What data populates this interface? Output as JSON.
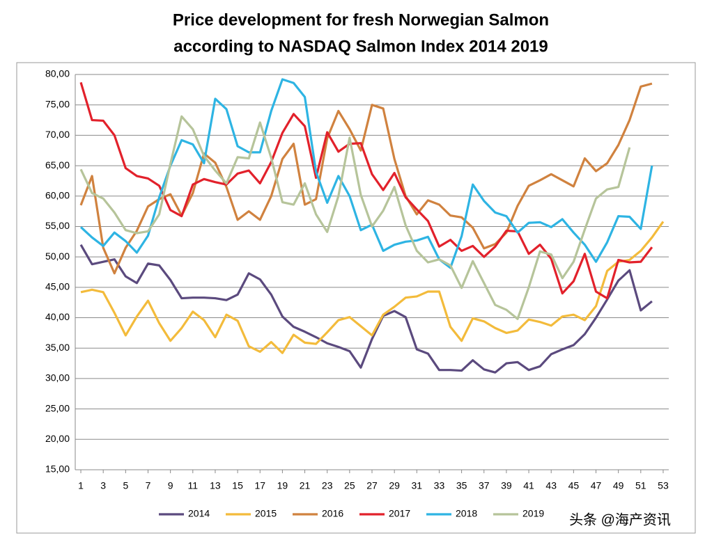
{
  "chart_data": {
    "type": "line",
    "title": [
      "Price development for fresh Norwegian Salmon",
      "according to NASDAQ Salmon Index 2014 2019"
    ],
    "watermark": "头条 @海产资讯",
    "x": [
      1,
      2,
      3,
      4,
      5,
      6,
      7,
      8,
      9,
      10,
      11,
      12,
      13,
      14,
      15,
      16,
      17,
      18,
      19,
      20,
      21,
      22,
      23,
      24,
      25,
      26,
      27,
      28,
      29,
      30,
      31,
      32,
      33,
      34,
      35,
      36,
      37,
      38,
      39,
      40,
      41,
      42,
      43,
      44,
      45,
      46,
      47,
      48,
      49,
      50,
      51,
      52,
      53
    ],
    "xlim": [
      0.5,
      53.5
    ],
    "xticks": [
      1,
      3,
      5,
      7,
      9,
      11,
      13,
      15,
      17,
      19,
      21,
      23,
      25,
      27,
      29,
      31,
      33,
      35,
      37,
      39,
      41,
      43,
      45,
      47,
      49,
      51,
      53
    ],
    "ylim": [
      15,
      80
    ],
    "yticks": [
      {
        "value": 15,
        "label": "15,00"
      },
      {
        "value": 20,
        "label": "20,00"
      },
      {
        "value": 25,
        "label": "25,00"
      },
      {
        "value": 30,
        "label": "30,00"
      },
      {
        "value": 35,
        "label": "35,00"
      },
      {
        "value": 40,
        "label": "40,00"
      },
      {
        "value": 45,
        "label": "45,00"
      },
      {
        "value": 50,
        "label": "50,00"
      },
      {
        "value": 55,
        "label": "55,00"
      },
      {
        "value": 60,
        "label": "60,00"
      },
      {
        "value": 65,
        "label": "65,00"
      },
      {
        "value": 70,
        "label": "70,00"
      },
      {
        "value": 75,
        "label": "75,00"
      },
      {
        "value": 80,
        "label": "80,00"
      }
    ],
    "grid": true,
    "legend": "bottom",
    "series": [
      {
        "name": "2014",
        "color": "#5b4a7e",
        "values": [
          52,
          48.8,
          49.2,
          49.6,
          46.8,
          45.7,
          48.9,
          48.6,
          46.2,
          43.2,
          43.3,
          43.3,
          43.2,
          42.9,
          43.8,
          47.3,
          46.3,
          43.8,
          40.2,
          38.5,
          37.7,
          36.8,
          35.8,
          35.2,
          34.5,
          31.8,
          36.5,
          40.3,
          41.1,
          40.1,
          34.8,
          34.1,
          31.4,
          31.4,
          31.3,
          33,
          31.5,
          31,
          32.5,
          32.7,
          31.4,
          32,
          34,
          34.8,
          35.5,
          37.3,
          40,
          43,
          46.1,
          47.8,
          41.2,
          42.7,
          null
        ]
      },
      {
        "name": "2015",
        "color": "#f3bb3b",
        "values": [
          44.2,
          44.6,
          44.2,
          40.8,
          37.1,
          40.2,
          42.8,
          39.1,
          36.2,
          38.3,
          41,
          39.6,
          36.8,
          40.5,
          39.5,
          35.3,
          34.4,
          36,
          34.2,
          37.2,
          35.9,
          35.7,
          37.6,
          39.6,
          40.1,
          38.6,
          37.1,
          40.5,
          41.8,
          43.3,
          43.5,
          44.3,
          44.3,
          38.5,
          36.2,
          39.9,
          39.4,
          38.3,
          37.5,
          37.9,
          39.7,
          39.3,
          38.7,
          40.2,
          40.5,
          39.6,
          41.9,
          47.7,
          49.2,
          49.5,
          51,
          53.2,
          55.8
        ]
      },
      {
        "name": "2016",
        "color": "#d0823f",
        "values": [
          58.5,
          63.3,
          51.5,
          47.3,
          51.5,
          54.3,
          58.3,
          59.5,
          60.3,
          56.8,
          60.5,
          67,
          65.5,
          61.5,
          56.1,
          57.5,
          56.1,
          60,
          66.1,
          68.6,
          58.6,
          59.5,
          69.5,
          74,
          71,
          67.5,
          75,
          74.4,
          66.1,
          60,
          57,
          59.3,
          58.6,
          56.8,
          56.5,
          54.8,
          51.4,
          52.1,
          54,
          58.4,
          61.7,
          62.6,
          63.6,
          62.6,
          61.6,
          66.2,
          64.1,
          65.4,
          68.4,
          72.5,
          78,
          78.5,
          null
        ]
      },
      {
        "name": "2017",
        "color": "#e2212b",
        "values": [
          78.7,
          72.5,
          72.4,
          70,
          64.6,
          63.3,
          62.9,
          61.7,
          57.7,
          56.7,
          61.9,
          62.8,
          62.3,
          61.9,
          63.7,
          64.2,
          62.1,
          65.6,
          70.4,
          73.5,
          71.5,
          63,
          70.5,
          67.3,
          68.6,
          68.7,
          63.6,
          61,
          63.8,
          59.8,
          57.8,
          55.9,
          51.7,
          52.8,
          51,
          51.8,
          50,
          51.7,
          54.3,
          54.2,
          50.5,
          52,
          49.7,
          44,
          46,
          50.5,
          44.3,
          43.2,
          49.5,
          49.1,
          49.2,
          51.6,
          null
        ]
      },
      {
        "name": "2018",
        "color": "#2eb4e3",
        "values": [
          54.9,
          53.2,
          51.8,
          54,
          52.6,
          50.7,
          53.5,
          59.8,
          65,
          69.2,
          68.5,
          65.4,
          76,
          74.3,
          68.2,
          67.2,
          67.2,
          74,
          79.2,
          78.6,
          76.3,
          64,
          58.9,
          63.3,
          60,
          54.4,
          55.3,
          51,
          52,
          52.5,
          52.7,
          53.3,
          49.6,
          48.2,
          53.4,
          61.9,
          59.2,
          57.3,
          56.7,
          54,
          55.6,
          55.7,
          54.9,
          56.2,
          54,
          52,
          49.2,
          52.4,
          56.7,
          56.6,
          54.6,
          65,
          null
        ]
      },
      {
        "name": "2019",
        "color": "#b6c49a",
        "values": [
          64.4,
          60.5,
          59.6,
          57.3,
          54.4,
          53.9,
          54.2,
          57,
          65.3,
          73.1,
          71,
          66.6,
          64.2,
          62.1,
          66.4,
          66.2,
          72.1,
          66.3,
          59,
          58.6,
          62.1,
          57,
          54.1,
          60,
          69.6,
          60.2,
          55,
          57.6,
          61.5,
          55.2,
          51,
          49.1,
          49.6,
          48.6,
          44.9,
          49.3,
          45.7,
          42.1,
          41.3,
          39.8,
          45,
          50.9,
          50.4,
          46.5,
          49.2,
          54.5,
          59.6,
          61.1,
          61.5,
          68,
          null,
          null,
          null
        ]
      }
    ]
  }
}
